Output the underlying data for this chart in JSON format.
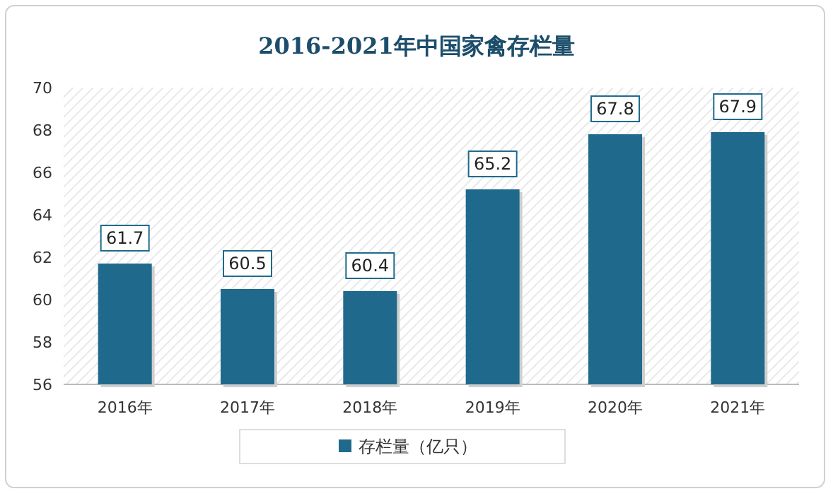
{
  "chart_data": {
    "type": "bar",
    "title": "2016-2021年中国家禽存栏量",
    "categories": [
      "2016年",
      "2017年",
      "2018年",
      "2019年",
      "2020年",
      "2021年"
    ],
    "series": [
      {
        "name": "存栏量（亿只）",
        "color": "#1f6a8c",
        "values": [
          61.7,
          60.5,
          60.4,
          65.2,
          67.8,
          67.9
        ]
      }
    ],
    "ylim": [
      56,
      70
    ],
    "yticks": [
      56,
      58,
      60,
      62,
      64,
      66,
      68,
      70
    ],
    "data_labels": true,
    "legend": "bottom"
  }
}
